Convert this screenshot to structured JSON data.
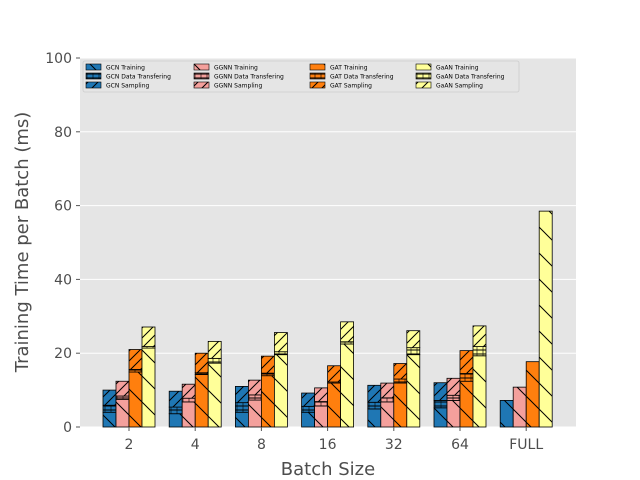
{
  "chart_data": {
    "type": "bar",
    "stacked": true,
    "xlabel": "Batch Size",
    "ylabel": "Training Time per Batch (ms)",
    "ylim": [
      0,
      100
    ],
    "yticks": [
      0,
      20,
      40,
      60,
      80,
      100
    ],
    "categories": [
      "2",
      "4",
      "8",
      "16",
      "32",
      "64",
      "FULL"
    ],
    "grid": true,
    "legend_position": "top-left",
    "models": [
      {
        "name": "GCN",
        "color": "#1f77b4",
        "training": [
          4.0,
          3.6,
          4.0,
          4.0,
          4.9,
          5.2,
          7.2
        ],
        "data_transferring": [
          1.9,
          1.8,
          2.6,
          1.6,
          1.8,
          2.0,
          0.0
        ],
        "sampling": [
          4.1,
          4.3,
          4.4,
          3.6,
          4.6,
          4.8,
          0.0
        ]
      },
      {
        "name": "GGNN",
        "color": "#f4a09c",
        "training": [
          7.5,
          6.8,
          7.3,
          5.7,
          6.8,
          7.2,
          10.8
        ],
        "data_transferring": [
          0.9,
          1.0,
          1.4,
          1.2,
          1.1,
          1.4,
          0.0
        ],
        "sampling": [
          4.0,
          3.8,
          4.0,
          3.7,
          4.0,
          4.6,
          0.0
        ]
      },
      {
        "name": "GAT",
        "color": "#ff7f0e",
        "training": [
          14.9,
          14.2,
          13.9,
          11.9,
          11.9,
          12.4,
          17.7
        ],
        "data_transferring": [
          0.7,
          0.5,
          0.7,
          0.3,
          1.1,
          2.1,
          0.0
        ],
        "sampling": [
          5.4,
          5.3,
          4.6,
          4.4,
          4.2,
          6.2,
          0.0
        ]
      },
      {
        "name": "GaAN",
        "color": "#ffff99",
        "training": [
          21.4,
          17.3,
          19.6,
          22.5,
          19.6,
          19.3,
          58.5
        ],
        "data_transferring": [
          0.4,
          1.3,
          0.8,
          0.6,
          1.9,
          2.5,
          0.0
        ],
        "sampling": [
          5.3,
          4.6,
          5.2,
          5.4,
          4.6,
          5.6,
          0.0
        ]
      }
    ],
    "components": [
      "Training",
      "Data Transfering",
      "Sampling"
    ],
    "legend_entries": [
      "GCN Training",
      "GCN Data Transfering",
      "GCN Sampling",
      "GGNN Training",
      "GGNN Data Transfering",
      "GGNN Sampling",
      "GAT Training",
      "GAT Data Transfering",
      "GAT Sampling",
      "GaAN Training",
      "GaAN Data Transfering",
      "GaAN Sampling"
    ],
    "background_color": "#e5e5e5",
    "grid_color": "#ffffff",
    "text_color": "#4d4d4d"
  }
}
